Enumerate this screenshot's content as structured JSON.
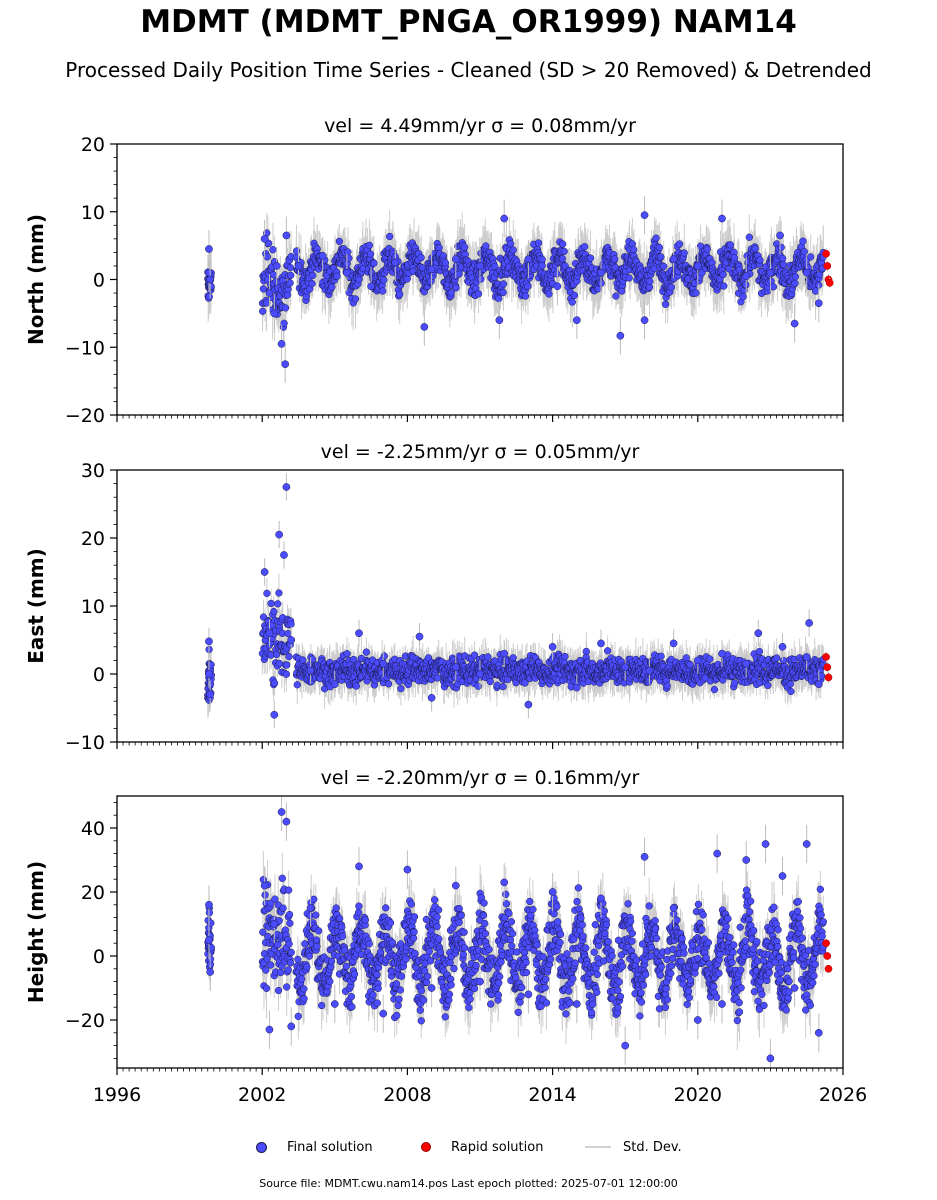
{
  "figure": {
    "title": "MDMT (MDMT_PNGA_OR1999) NAM14",
    "subtitle": "Processed Daily Position Time Series - Cleaned (SD > 20 Removed) & Detrended",
    "footer": "Source file: MDMT.cwu.nam14.pos  Last epoch plotted: 2025-07-01 12:00:00"
  },
  "legend": {
    "final_label": "Final solution",
    "rapid_label": "Rapid solution",
    "std_label": "Std. Dev."
  },
  "colors": {
    "final": "#4b4bff",
    "final_edge": "#1a1a4a",
    "rapid": "#ff0000",
    "stddev": "#bdbdbd"
  },
  "chart_data": [
    {
      "type": "scatter",
      "panel": "north",
      "title": "vel = 4.49mm/yr   σ = 0.08mm/yr",
      "ylabel": "North (mm)",
      "xlabel": "",
      "xlim": [
        1996,
        2026
      ],
      "ylim": [
        -20,
        20
      ],
      "xticks": [
        "1996",
        "2002",
        "2008",
        "2014",
        "2020",
        "2026"
      ],
      "yticks": [
        "20",
        "10",
        "0",
        "−10",
        "−20"
      ],
      "grid": false,
      "series": [
        {
          "name": "Final solution",
          "points": [
            [
              1999.8,
              4.5
            ],
            [
              1999.8,
              1.0
            ],
            [
              1999.85,
              0.0
            ],
            [
              2002.1,
              6.0
            ],
            [
              2002.3,
              -2.0
            ],
            [
              2002.5,
              -5.0
            ],
            [
              2002.6,
              2.0
            ],
            [
              2002.8,
              -9.5
            ],
            [
              2002.95,
              -12.5
            ],
            [
              2003.0,
              6.5
            ],
            [
              2003.5,
              2.0
            ],
            [
              2004.5,
              3.5
            ],
            [
              2005.5,
              1.0
            ],
            [
              2006.5,
              -1.0
            ],
            [
              2007.5,
              2.5
            ],
            [
              2008.7,
              -7.0
            ],
            [
              2009.0,
              1.5
            ],
            [
              2010.0,
              3.0
            ],
            [
              2011.0,
              2.0
            ],
            [
              2011.8,
              -6.0
            ],
            [
              2012.0,
              9.0
            ],
            [
              2013.0,
              3.0
            ],
            [
              2014.2,
              -1.0
            ],
            [
              2015.0,
              -6.0
            ],
            [
              2016.0,
              1.0
            ],
            [
              2016.8,
              -8.3
            ],
            [
              2017.8,
              9.5
            ],
            [
              2017.8,
              -6.0
            ],
            [
              2019.0,
              3.0
            ],
            [
              2020.0,
              2.0
            ],
            [
              2021.0,
              9.0
            ],
            [
              2022.0,
              0.5
            ],
            [
              2023.0,
              1.0
            ],
            [
              2023.4,
              6.5
            ],
            [
              2024.0,
              -6.5
            ],
            [
              2024.5,
              1.0
            ],
            [
              2025.0,
              -3.5
            ]
          ]
        },
        {
          "name": "Rapid solution",
          "points": [
            [
              2025.3,
              3.8
            ],
            [
              2025.35,
              2.0
            ],
            [
              2025.4,
              0.0
            ],
            [
              2025.45,
              -0.5
            ]
          ]
        }
      ]
    },
    {
      "type": "scatter",
      "panel": "east",
      "title": "vel = -2.25mm/yr   σ = 0.05mm/yr",
      "ylabel": "East (mm)",
      "xlabel": "",
      "xlim": [
        1996,
        2026
      ],
      "ylim": [
        -10,
        30
      ],
      "xticks": [
        "1996",
        "2002",
        "2008",
        "2014",
        "2020",
        "2026"
      ],
      "yticks": [
        "30",
        "20",
        "10",
        "0",
        "−10"
      ],
      "grid": false,
      "series": [
        {
          "name": "Final solution",
          "points": [
            [
              1999.8,
              4.8
            ],
            [
              1999.8,
              0.0
            ],
            [
              1999.85,
              -3.0
            ],
            [
              2002.1,
              15.0
            ],
            [
              2002.3,
              6.0
            ],
            [
              2002.5,
              -6.0
            ],
            [
              2002.7,
              20.5
            ],
            [
              2002.9,
              17.5
            ],
            [
              2003.0,
              27.5
            ],
            [
              2003.2,
              5.0
            ],
            [
              2004.0,
              0.5
            ],
            [
              2005.0,
              -1.5
            ],
            [
              2006.0,
              6.0
            ],
            [
              2007.0,
              1.5
            ],
            [
              2008.5,
              5.5
            ],
            [
              2009.0,
              -3.5
            ],
            [
              2010.0,
              1.0
            ],
            [
              2011.0,
              0.0
            ],
            [
              2012.0,
              3.0
            ],
            [
              2013.0,
              -4.5
            ],
            [
              2014.0,
              4.0
            ],
            [
              2015.0,
              -2.0
            ],
            [
              2016.0,
              4.5
            ],
            [
              2017.0,
              1.0
            ],
            [
              2018.0,
              0.5
            ],
            [
              2019.0,
              4.5
            ],
            [
              2020.0,
              2.0
            ],
            [
              2021.0,
              3.0
            ],
            [
              2022.0,
              1.5
            ],
            [
              2022.5,
              6.0
            ],
            [
              2023.5,
              4.0
            ],
            [
              2024.5,
              2.5
            ],
            [
              2024.6,
              7.5
            ],
            [
              2025.0,
              -1.5
            ]
          ]
        },
        {
          "name": "Rapid solution",
          "points": [
            [
              2025.3,
              2.5
            ],
            [
              2025.35,
              1.0
            ],
            [
              2025.4,
              -0.5
            ]
          ]
        }
      ]
    },
    {
      "type": "scatter",
      "panel": "height",
      "title": "vel = -2.20mm/yr   σ = 0.16mm/yr",
      "ylabel": "Height (mm)",
      "xlabel": "",
      "xlim": [
        1996,
        2026
      ],
      "ylim": [
        -35,
        50
      ],
      "xticks": [
        "1996",
        "2002",
        "2008",
        "2014",
        "2020",
        "2026"
      ],
      "yticks": [
        "40",
        "20",
        "0",
        "−20"
      ],
      "grid": false,
      "series": [
        {
          "name": "Final solution",
          "points": [
            [
              1999.8,
              16.0
            ],
            [
              1999.8,
              5.0
            ],
            [
              1999.85,
              -5.0
            ],
            [
              2002.1,
              22.0
            ],
            [
              2002.3,
              -23.0
            ],
            [
              2002.5,
              10.0
            ],
            [
              2002.8,
              45.0
            ],
            [
              2003.0,
              42.0
            ],
            [
              2003.2,
              -22.0
            ],
            [
              2004.0,
              15.0
            ],
            [
              2005.0,
              -15.0
            ],
            [
              2006.0,
              28.0
            ],
            [
              2007.0,
              -18.0
            ],
            [
              2008.0,
              27.0
            ],
            [
              2009.0,
              -10.0
            ],
            [
              2010.0,
              22.0
            ],
            [
              2011.0,
              -8.0
            ],
            [
              2012.0,
              23.0
            ],
            [
              2013.0,
              -12.0
            ],
            [
              2014.0,
              20.0
            ],
            [
              2015.0,
              -15.0
            ],
            [
              2016.0,
              18.0
            ],
            [
              2017.0,
              -28.0
            ],
            [
              2017.8,
              31.0
            ],
            [
              2019.0,
              15.0
            ],
            [
              2020.0,
              -20.0
            ],
            [
              2020.8,
              32.0
            ],
            [
              2021.0,
              -15.0
            ],
            [
              2022.0,
              30.0
            ],
            [
              2022.8,
              35.0
            ],
            [
              2023.0,
              -32.0
            ],
            [
              2023.5,
              25.0
            ],
            [
              2024.0,
              -10.0
            ],
            [
              2024.5,
              35.0
            ],
            [
              2025.0,
              -24.0
            ]
          ]
        },
        {
          "name": "Rapid solution",
          "points": [
            [
              2025.3,
              4.0
            ],
            [
              2025.35,
              0.0
            ],
            [
              2025.4,
              -4.0
            ]
          ]
        }
      ]
    }
  ]
}
